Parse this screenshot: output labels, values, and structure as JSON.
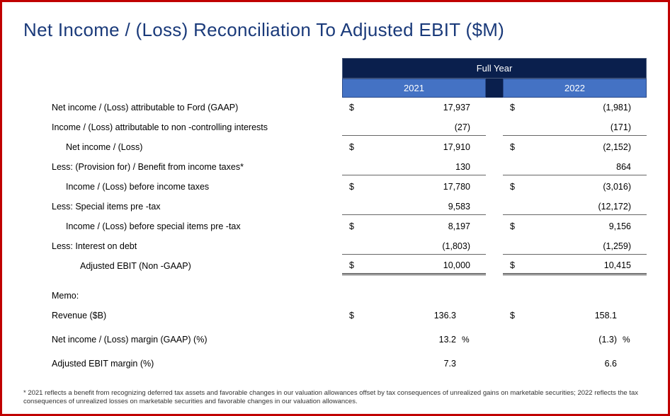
{
  "title": "Net Income / (Loss) Reconciliation To Adjusted EBIT ($M)",
  "header": {
    "fullyear": "Full Year",
    "year1": "2021",
    "year2": "2022"
  },
  "rows": [
    {
      "label": "Net income / (Loss) attributable to Ford (GAAP)",
      "indent": 0,
      "cur1": "$",
      "v1": "17,937",
      "cur2": "$",
      "v2": "(1,981)",
      "rule": "none"
    },
    {
      "label": "Income / (Loss) attributable to non   -controlling interests",
      "indent": 0,
      "cur1": "",
      "v1": "(27)",
      "cur2": "",
      "v2": "(171)",
      "rule": "underline"
    },
    {
      "label": "Net income / (Loss)",
      "indent": 1,
      "cur1": "$",
      "v1": "17,910",
      "cur2": "$",
      "v2": "(2,152)",
      "rule": "none"
    },
    {
      "label": "Less: (Provision for) / Benefit from income taxes*",
      "indent": 0,
      "cur1": "",
      "v1": "130",
      "cur2": "",
      "v2": "864",
      "rule": "underline"
    },
    {
      "label": "Income / (Loss) before income taxes",
      "indent": 1,
      "cur1": "$",
      "v1": "17,780",
      "cur2": "$",
      "v2": "(3,016)",
      "rule": "none"
    },
    {
      "label": "Less: Special items pre  -tax",
      "indent": 0,
      "cur1": "",
      "v1": "9,583",
      "cur2": "",
      "v2": "(12,172)",
      "rule": "underline"
    },
    {
      "label": "Income / (Loss) before special items pre   -tax",
      "indent": 1,
      "cur1": "$",
      "v1": "8,197",
      "cur2": "$",
      "v2": "9,156",
      "rule": "none"
    },
    {
      "label": "Less: Interest on debt",
      "indent": 0,
      "cur1": "",
      "v1": "(1,803)",
      "cur2": "",
      "v2": "(1,259)",
      "rule": "underline"
    },
    {
      "label": "Adjusted EBIT (Non  -GAAP)",
      "indent": 2,
      "cur1": "$",
      "v1": "10,000",
      "cur2": "$",
      "v2": "10,415",
      "rule": "dbl"
    }
  ],
  "memo_label": "Memo:",
  "memo_rows": [
    {
      "label": "Revenue ($B)",
      "indent": 0,
      "cur1": "$",
      "v1": "136.3",
      "cur2": "$",
      "v2": "158.1",
      "sfx": ""
    },
    {
      "label": "Net income / (Loss) margin (GAAP) (%)",
      "indent": 0,
      "cur1": "",
      "v1": "13.2",
      "cur2": "",
      "v2": "(1.3)",
      "sfx": "%"
    },
    {
      "label": "Adjusted EBIT margin (%)",
      "indent": 0,
      "cur1": "",
      "v1": "7.3",
      "cur2": "",
      "v2": "6.6",
      "sfx": ""
    }
  ],
  "footnote": "* 2021 reflects a benefit from recognizing deferred tax assets and favorable changes in our valuation allowances offset by tax consequences of unrealized gains on marketable securities; 2022 reflects the tax consequences of unrealized losses on marketable securities and favorable changes in our valuation allowances.",
  "colors": {
    "border": "#c00000",
    "title": "#1a3a7a",
    "header_dark": "#0a1f4d",
    "header_light": "#4472c4"
  }
}
